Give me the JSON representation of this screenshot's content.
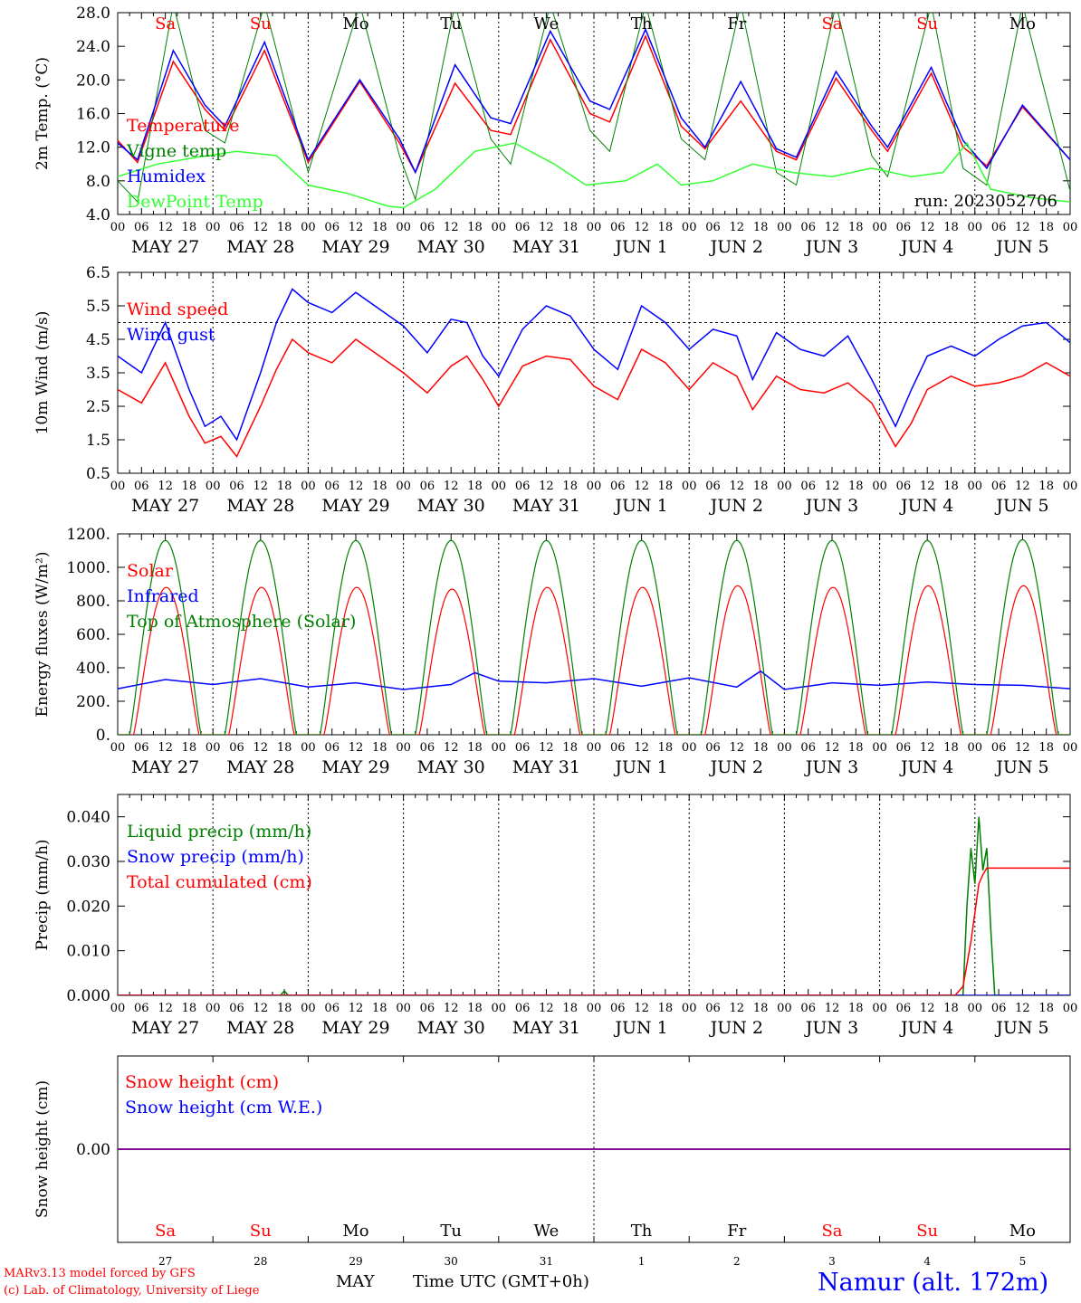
{
  "colors": {
    "red": "#ff0000",
    "green": "#008000",
    "blue": "#0000ff",
    "lightgreen": "#33ff33",
    "purple": "#800080",
    "weekend": "#ff0000",
    "weekday": "#000000"
  },
  "footer": {
    "credit_line1": "MARv3.13 model forced by GFS",
    "credit_line2": "(c) Lab. of Climatology, University of Liege",
    "month_label": "MAY",
    "time_label": "Time UTC (GMT+0h)",
    "station": "Namur (alt. 172m)"
  },
  "chart_data": {
    "type": "line",
    "run_label": "run: 2023052706",
    "days": [
      {
        "abbr": "Sa",
        "date": "MAY 27",
        "num": "27",
        "weekend": true
      },
      {
        "abbr": "Su",
        "date": "MAY 28",
        "num": "28",
        "weekend": true
      },
      {
        "abbr": "Mo",
        "date": "MAY 29",
        "num": "29",
        "weekend": false
      },
      {
        "abbr": "Tu",
        "date": "MAY 30",
        "num": "30",
        "weekend": false
      },
      {
        "abbr": "We",
        "date": "MAY 31",
        "num": "31",
        "weekend": false
      },
      {
        "abbr": "Th",
        "date": "JUN  1",
        "num": "1",
        "weekend": false
      },
      {
        "abbr": "Fr",
        "date": "JUN  2",
        "num": "2",
        "weekend": false
      },
      {
        "abbr": "Sa",
        "date": "JUN  3",
        "num": "3",
        "weekend": true
      },
      {
        "abbr": "Su",
        "date": "JUN  4",
        "num": "4",
        "weekend": true
      },
      {
        "abbr": "Mo",
        "date": "JUN  5",
        "num": "5",
        "weekend": false
      }
    ],
    "hour_ticks": [
      "00",
      "06",
      "12",
      "18"
    ],
    "x_unit": "hours since 2023-05-27 00 UTC",
    "xlim": [
      0,
      240
    ],
    "panels": [
      {
        "id": "temperature",
        "ylabel": "2m Temp. (°C)",
        "ylim": [
          4,
          28
        ],
        "yticks": [
          4,
          8,
          12,
          16,
          20,
          24,
          28
        ],
        "ytick_labels": [
          "4.0",
          "8.0",
          "12.0",
          "16.0",
          "20.0",
          "24.0",
          "28.0"
        ],
        "legend_placement": "top-left",
        "series": [
          {
            "name": "Temperature",
            "color": "red",
            "x": [
              0,
              5,
              14,
              22,
              27,
              37,
              48,
              61,
              71,
              75,
              85,
              94,
              99,
              109,
              119,
              124,
              133,
              142,
              148,
              157,
              166,
              171,
              181,
              190,
              194,
              205,
              213,
              219,
              228,
              240
            ],
            "y": [
              12.8,
              10.2,
              22.2,
              16.5,
              14.0,
              23.5,
              10.2,
              19.8,
              12.5,
              9.0,
              19.6,
              14.0,
              13.5,
              24.8,
              16.0,
              15.0,
              25.2,
              14.5,
              11.8,
              17.5,
              11.5,
              10.5,
              20.2,
              14.0,
              11.5,
              20.8,
              12.0,
              9.8,
              16.8,
              10.5
            ]
          },
          {
            "name": "Vigne temp",
            "color": "green",
            "x": [
              0,
              5,
              14,
              22,
              27,
              37,
              48,
              61,
              71,
              75,
              85,
              94,
              99,
              109,
              119,
              124,
              133,
              142,
              148,
              157,
              166,
              171,
              181,
              190,
              194,
              205,
              213,
              219,
              228,
              240
            ],
            "y": [
              8.0,
              5.5,
              29.0,
              14.0,
              12.5,
              29.0,
              9.0,
              29.0,
              11.0,
              5.8,
              29.0,
              13.0,
              10.0,
              29.0,
              14.0,
              11.5,
              29.0,
              13.0,
              10.5,
              29.0,
              9.0,
              7.5,
              29.0,
              11.0,
              8.5,
              29.0,
              9.5,
              7.5,
              29.0,
              6.8
            ]
          },
          {
            "name": "Humidex",
            "color": "blue",
            "x": [
              0,
              5,
              14,
              22,
              27,
              37,
              48,
              61,
              71,
              75,
              85,
              94,
              99,
              109,
              119,
              124,
              133,
              142,
              148,
              157,
              166,
              171,
              181,
              190,
              194,
              205,
              213,
              219,
              228,
              240
            ],
            "y": [
              12.5,
              10.5,
              23.5,
              17.0,
              14.5,
              24.5,
              10.5,
              20.0,
              13.0,
              9.0,
              21.8,
              15.5,
              14.8,
              25.8,
              17.5,
              16.5,
              26.0,
              15.5,
              12.0,
              19.8,
              11.8,
              10.8,
              21.0,
              14.5,
              12.0,
              21.5,
              12.8,
              9.5,
              17.0,
              10.5
            ]
          },
          {
            "name": "DewPoint Temp",
            "color": "lightgreen",
            "x": [
              0,
              10,
              20,
              30,
              40,
              48,
              58,
              68,
              72,
              80,
              90,
              100,
              110,
              118,
              128,
              136,
              142,
              150,
              160,
              170,
              180,
              190,
              200,
              208,
              214,
              220,
              230,
              240
            ],
            "y": [
              8.5,
              10.0,
              10.8,
              11.5,
              11.0,
              7.5,
              6.5,
              5.0,
              4.8,
              7.0,
              11.5,
              12.5,
              10.0,
              7.5,
              8.0,
              10.0,
              7.5,
              8.0,
              10.0,
              9.0,
              8.5,
              9.5,
              8.5,
              9.0,
              12.5,
              7.0,
              6.0,
              5.5
            ]
          }
        ]
      },
      {
        "id": "wind",
        "ylabel": "10m Wind (m/s)",
        "ylim": [
          0.5,
          6.5
        ],
        "yticks": [
          0.5,
          1.5,
          2.5,
          3.5,
          4.5,
          5.5,
          6.5
        ],
        "ytick_labels": [
          "0.5",
          "1.5",
          "2.5",
          "3.5",
          "4.5",
          "5.5",
          "6.5"
        ],
        "reference_line": 5.0,
        "legend_placement": "top-left",
        "series": [
          {
            "name": "Wind speed",
            "color": "red",
            "x": [
              0,
              6,
              12,
              18,
              22,
              26,
              30,
              36,
              40,
              44,
              48,
              54,
              60,
              66,
              72,
              78,
              84,
              88,
              92,
              96,
              102,
              108,
              114,
              120,
              126,
              132,
              138,
              144,
              150,
              156,
              160,
              166,
              172,
              178,
              184,
              190,
              196,
              200,
              204,
              210,
              216,
              222,
              228,
              234,
              240
            ],
            "y": [
              3.0,
              2.6,
              3.8,
              2.2,
              1.4,
              1.6,
              1.0,
              2.5,
              3.6,
              4.5,
              4.1,
              3.8,
              4.5,
              4.0,
              3.5,
              2.9,
              3.7,
              4.0,
              3.3,
              2.5,
              3.7,
              4.0,
              3.9,
              3.1,
              2.7,
              4.2,
              3.8,
              3.0,
              3.8,
              3.4,
              2.4,
              3.4,
              3.0,
              2.9,
              3.2,
              2.6,
              1.3,
              2.0,
              3.0,
              3.4,
              3.1,
              3.2,
              3.4,
              3.8,
              3.4
            ]
          },
          {
            "name": "Wind gust",
            "color": "blue",
            "x": [
              0,
              6,
              12,
              18,
              22,
              26,
              30,
              36,
              40,
              44,
              48,
              54,
              60,
              66,
              72,
              78,
              84,
              88,
              92,
              96,
              102,
              108,
              114,
              120,
              126,
              132,
              138,
              144,
              150,
              156,
              160,
              166,
              172,
              178,
              184,
              190,
              196,
              200,
              204,
              210,
              216,
              222,
              228,
              234,
              240
            ],
            "y": [
              4.0,
              3.5,
              5.0,
              3.0,
              1.9,
              2.2,
              1.5,
              3.5,
              5.0,
              6.0,
              5.6,
              5.3,
              5.9,
              5.4,
              4.9,
              4.1,
              5.1,
              5.0,
              4.0,
              3.4,
              4.8,
              5.5,
              5.2,
              4.2,
              3.6,
              5.5,
              5.0,
              4.2,
              4.8,
              4.6,
              3.3,
              4.7,
              4.2,
              4.0,
              4.6,
              3.3,
              1.9,
              3.0,
              4.0,
              4.3,
              4.0,
              4.5,
              4.9,
              5.0,
              4.4
            ]
          }
        ]
      },
      {
        "id": "energy",
        "ylabel": "Energy fluxes (W/m²)",
        "ylim": [
          0,
          1200
        ],
        "yticks": [
          0,
          200,
          400,
          600,
          800,
          1000,
          1200
        ],
        "ytick_labels": [
          "0.",
          "200.",
          "400.",
          "600.",
          "800.",
          "1000.",
          "1200."
        ],
        "legend_placement": "top-left",
        "diurnal": {
          "solar_peak": [
            880,
            880,
            880,
            870,
            880,
            880,
            890,
            880,
            890,
            890
          ],
          "toa_peak": [
            1160,
            1160,
            1160,
            1160,
            1160,
            1160,
            1160,
            1160,
            1160,
            1165
          ],
          "sunrise_hour": 4,
          "sunset_hour": 20.5,
          "toa_sunrise_hour": 3,
          "toa_sunset_hour": 21
        },
        "series": [
          {
            "name": "Solar",
            "color": "red",
            "derived_from": "diurnal.solar_peak"
          },
          {
            "name": "Infrared",
            "color": "blue",
            "x": [
              0,
              12,
              24,
              36,
              48,
              60,
              72,
              84,
              90,
              96,
              108,
              120,
              132,
              144,
              156,
              162,
              168,
              180,
              192,
              204,
              216,
              228,
              240
            ],
            "y": [
              275,
              330,
              300,
              335,
              285,
              310,
              270,
              300,
              370,
              320,
              310,
              335,
              290,
              340,
              285,
              380,
              270,
              310,
              295,
              315,
              300,
              295,
              275
            ]
          },
          {
            "name": "Top of Atmosphere (Solar)",
            "color": "green",
            "derived_from": "diurnal.toa_peak"
          }
        ]
      },
      {
        "id": "precip",
        "ylabel": "Precip (mm/h)",
        "ylim": [
          0,
          0.045
        ],
        "yticks": [
          0,
          0.01,
          0.02,
          0.03,
          0.04
        ],
        "ytick_labels": [
          "0.000",
          "0.010",
          "0.020",
          "0.030",
          "0.040"
        ],
        "legend_placement": "top-left",
        "series": [
          {
            "name": "Liquid precip (mm/h)",
            "color": "green",
            "x": [
              0,
              41,
              42,
              43,
              44,
              213,
              214,
              215,
              216,
              217,
              218,
              219,
              220,
              221,
              240
            ],
            "y": [
              0,
              0,
              0.001,
              0,
              0,
              0,
              0.02,
              0.033,
              0.025,
              0.04,
              0.028,
              0.033,
              0.015,
              0,
              0
            ]
          },
          {
            "name": "Snow precip (mm/h)",
            "color": "blue",
            "x": [
              0,
              240
            ],
            "y": [
              0,
              0
            ]
          },
          {
            "name": "Total cumulated (cm)",
            "color": "red",
            "x": [
              0,
              211,
              213,
              215,
              217,
              218,
              219,
              240
            ],
            "y": [
              0,
              0,
              0.002,
              0.012,
              0.025,
              0.027,
              0.0285,
              0.0285
            ]
          }
        ]
      },
      {
        "id": "snow",
        "ylabel": "Snow height (cm)",
        "ylim": [
          -1,
          1
        ],
        "yticks": [
          0
        ],
        "ytick_labels": [
          "0.00"
        ],
        "legend_placement": "top-left",
        "series": [
          {
            "name": "Snow height (cm)",
            "color": "red",
            "x": [
              0,
              240
            ],
            "y": [
              0,
              0
            ]
          },
          {
            "name": "Snow height (cm W.E.)",
            "color": "blue",
            "x": [
              0,
              240
            ],
            "y": [
              0,
              0
            ]
          }
        ]
      }
    ]
  }
}
